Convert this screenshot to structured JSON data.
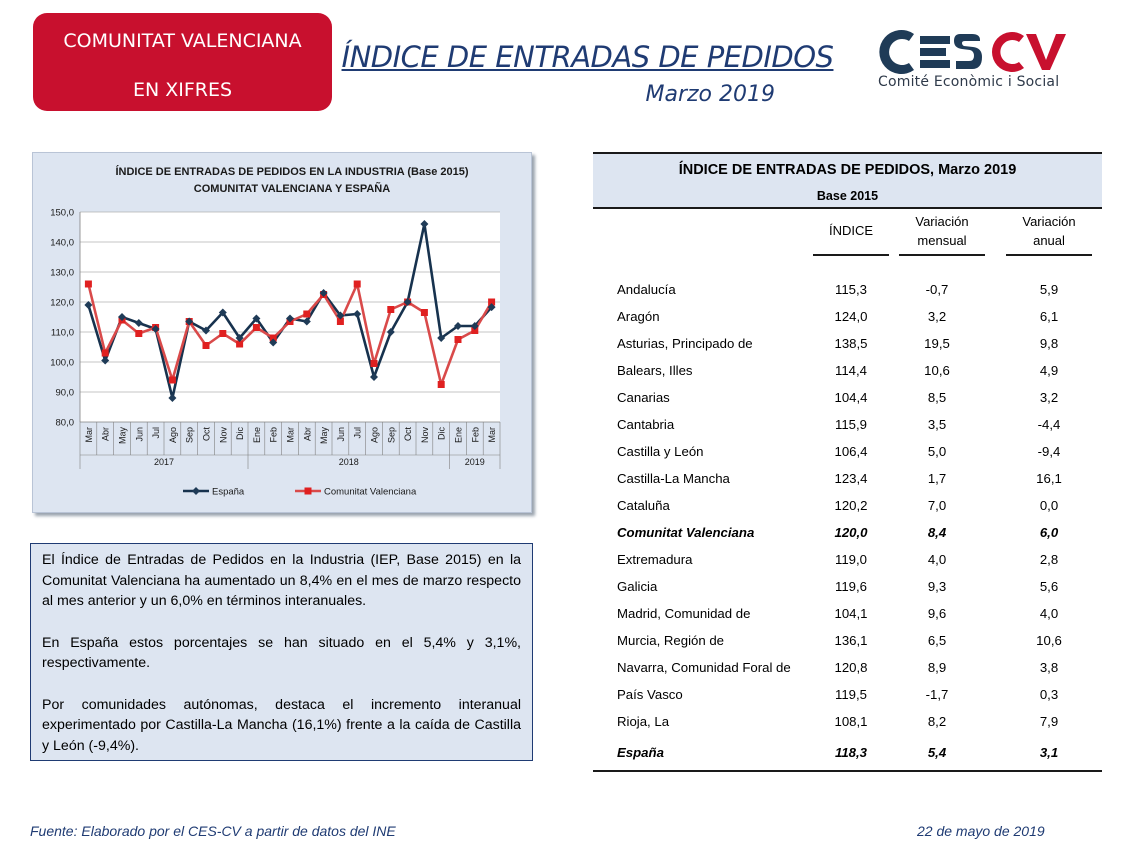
{
  "badge": {
    "line1": "COMUNITAT VALENCIANA",
    "line2": "EN XIFRES"
  },
  "header": {
    "title": "ÍNDICE DE ENTRADAS DE PEDIDOS",
    "subtitle": "Marzo 2019"
  },
  "logo": {
    "mark": "CESCV",
    "tagline": "Comité Econòmic i Social"
  },
  "colors": {
    "badge": "#c8102e",
    "spain": "#1f3b57",
    "valencia": "#e02020",
    "accent": "#1f3b73"
  },
  "chart_data": {
    "type": "line",
    "title": "ÍNDICE DE ENTRADAS DE PEDIDOS EN LA INDUSTRIA (Base 2015)",
    "subtitle": "COMUNITAT  VALENCIANA  Y ESPAÑA",
    "categories": [
      "Mar",
      "Abr",
      "May",
      "Jun",
      "Jul",
      "Ago",
      "Sep",
      "Oct",
      "Nov",
      "Dic",
      "Ene",
      "Feb",
      "Mar",
      "Abr",
      "May",
      "Jun",
      "Jul",
      "Ago",
      "Sep",
      "Oct",
      "Nov",
      "Dic",
      "Ene",
      "Feb",
      "Mar"
    ],
    "years": [
      {
        "label": "2017",
        "start": 0,
        "end": 9
      },
      {
        "label": "2018",
        "start": 10,
        "end": 21
      },
      {
        "label": "2019",
        "start": 22,
        "end": 24
      }
    ],
    "ylim": [
      80,
      150
    ],
    "yticks": [
      "80,0",
      "90,0",
      "100,0",
      "110,0",
      "120,0",
      "130,0",
      "140,0",
      "150,0"
    ],
    "grid": true,
    "legend_position": "bottom",
    "series": [
      {
        "name": "España",
        "values": [
          119.0,
          100.5,
          115.0,
          113.0,
          111.0,
          88.0,
          113.5,
          110.5,
          116.5,
          108.0,
          114.5,
          106.5,
          114.5,
          113.5,
          123.0,
          115.5,
          116.0,
          95.0,
          110.0,
          120.0,
          146.0,
          108.0,
          112.0,
          112.0,
          118.3
        ]
      },
      {
        "name": "Comunitat Valenciana",
        "values": [
          126.0,
          103.0,
          114.0,
          109.5,
          111.5,
          94.0,
          113.5,
          105.5,
          109.5,
          106.0,
          111.5,
          108.0,
          113.5,
          116.0,
          122.5,
          113.5,
          126.0,
          99.5,
          117.5,
          120.0,
          116.5,
          92.5,
          107.5,
          110.5,
          120.0
        ]
      }
    ]
  },
  "summary": [
    "El Índice de Entradas de Pedidos en la Industria (IEP, Base 2015) en la Comunitat Valenciana ha aumentado un 8,4% en el mes de marzo respecto al mes anterior y un 6,0% en términos interanuales.",
    "En España estos porcentajes se han situado en el 5,4% y 3,1%, respectivamente.",
    "Por comunidades autónomas, destaca el incremento interanual experimentado por Castilla-La Mancha (16,1%) frente a la caída de Castilla y León (-9,4%)."
  ],
  "table": {
    "title": "ÍNDICE DE ENTRADAS DE PEDIDOS, Marzo 2019",
    "base": "Base 2015",
    "columns": [
      {
        "l1": "ÍNDICE",
        "l2": ""
      },
      {
        "l1": "Variación",
        "l2": "mensual"
      },
      {
        "l1": "Variación",
        "l2": "anual"
      }
    ],
    "rows": [
      {
        "name": "Andalucía",
        "indice": "115,3",
        "mensual": "-0,7",
        "anual": "5,9",
        "bold": false
      },
      {
        "name": "Aragón",
        "indice": "124,0",
        "mensual": "3,2",
        "anual": "6,1",
        "bold": false
      },
      {
        "name": "Asturias, Principado de",
        "indice": "138,5",
        "mensual": "19,5",
        "anual": "9,8",
        "bold": false
      },
      {
        "name": "Balears, Illes",
        "indice": "114,4",
        "mensual": "10,6",
        "anual": "4,9",
        "bold": false
      },
      {
        "name": "Canarias",
        "indice": "104,4",
        "mensual": "8,5",
        "anual": "3,2",
        "bold": false
      },
      {
        "name": "Cantabria",
        "indice": "115,9",
        "mensual": "3,5",
        "anual": "-4,4",
        "bold": false
      },
      {
        "name": "Castilla y León",
        "indice": "106,4",
        "mensual": "5,0",
        "anual": "-9,4",
        "bold": false
      },
      {
        "name": "Castilla-La Mancha",
        "indice": "123,4",
        "mensual": "1,7",
        "anual": "16,1",
        "bold": false
      },
      {
        "name": "Cataluña",
        "indice": "120,2",
        "mensual": "7,0",
        "anual": "0,0",
        "bold": false
      },
      {
        "name": "Comunitat Valenciana",
        "indice": "120,0",
        "mensual": "8,4",
        "anual": "6,0",
        "bold": true
      },
      {
        "name": "Extremadura",
        "indice": "119,0",
        "mensual": "4,0",
        "anual": "2,8",
        "bold": false
      },
      {
        "name": "Galicia",
        "indice": "119,6",
        "mensual": "9,3",
        "anual": "5,6",
        "bold": false
      },
      {
        "name": "Madrid, Comunidad de",
        "indice": "104,1",
        "mensual": "9,6",
        "anual": "4,0",
        "bold": false
      },
      {
        "name": "Murcia, Región de",
        "indice": "136,1",
        "mensual": "6,5",
        "anual": "10,6",
        "bold": false
      },
      {
        "name": "Navarra, Comunidad Foral de",
        "indice": "120,8",
        "mensual": "8,9",
        "anual": "3,8",
        "bold": false
      },
      {
        "name": "País Vasco",
        "indice": "119,5",
        "mensual": "-1,7",
        "anual": "0,3",
        "bold": false
      },
      {
        "name": "Rioja, La",
        "indice": "108,1",
        "mensual": "8,2",
        "anual": "7,9",
        "bold": false
      }
    ],
    "total": {
      "name": "España",
      "indice": "118,3",
      "mensual": "5,4",
      "anual": "3,1",
      "bold": true
    }
  },
  "footer": {
    "source": "Fuente: Elaborado por el CES-CV a partir de datos del INE",
    "date": "22 de mayo de 2019"
  }
}
